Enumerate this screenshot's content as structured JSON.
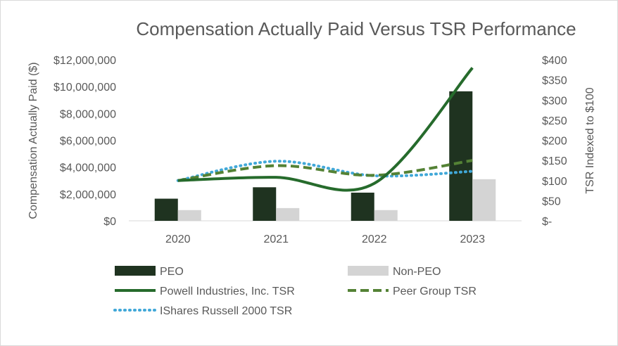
{
  "chart_data": {
    "type": "bar",
    "title": "Compensation Actually Paid Versus TSR Performance",
    "categories": [
      "2020",
      "2021",
      "2022",
      "2023"
    ],
    "ylabel": "Compensation Actually Paid ($)",
    "y2label": "TSR Indexed to $100",
    "ylim": [
      0,
      12000000
    ],
    "y2lim": [
      0,
      400
    ],
    "y_ticks": [
      0,
      2000000,
      4000000,
      6000000,
      8000000,
      10000000,
      12000000
    ],
    "y_tick_labels": [
      "$0",
      "$2,000,000",
      "$4,000,000",
      "$6,000,000",
      "$8,000,000",
      "$10,000,000",
      "$12,000,000"
    ],
    "y2_ticks": [
      0,
      50,
      100,
      150,
      200,
      250,
      300,
      350,
      400
    ],
    "y2_tick_labels": [
      "$-",
      "$50",
      "$100",
      "$150",
      "$200",
      "$250",
      "$300",
      "$350",
      "$400"
    ],
    "bar_series": [
      {
        "name": "PEO",
        "color": "#1f3320",
        "values": [
          1650000,
          2500000,
          2100000,
          9650000
        ]
      },
      {
        "name": "Non-PEO",
        "color": "#d4d4d4",
        "values": [
          800000,
          950000,
          800000,
          3100000
        ]
      }
    ],
    "line_series": [
      {
        "name": "Powell Industries, Inc. TSR",
        "color": "#266b2c",
        "style": "solid",
        "values": [
          100,
          108,
          93,
          380
        ]
      },
      {
        "name": "Peer Group TSR",
        "color": "#548235",
        "style": "dashed",
        "values": [
          100,
          137,
          113,
          150
        ]
      },
      {
        "name": "IShares Russell 2000 TSR",
        "color": "#41a8d8",
        "style": "dotted",
        "values": [
          100,
          148,
          112,
          123
        ]
      }
    ],
    "legend": "bottom"
  }
}
